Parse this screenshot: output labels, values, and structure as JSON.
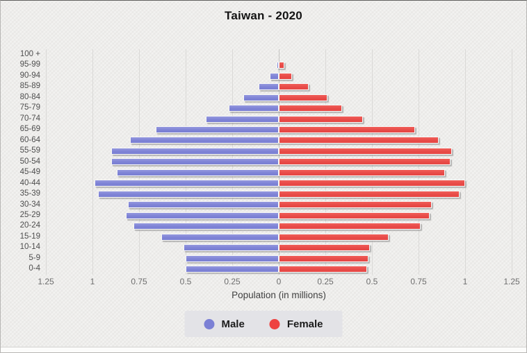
{
  "title": "Taiwan - 2020",
  "xlabel": "Population (in millions)",
  "legend": {
    "items": [
      {
        "name": "male",
        "label": "Male",
        "color": "#7b80d5"
      },
      {
        "name": "female",
        "label": "Female",
        "color": "#ee4341"
      }
    ]
  },
  "colors": {
    "male_bar": "#7e83d6",
    "female_bar": "#e84b48",
    "background": "#edecea",
    "gridline": "#dad9d7"
  },
  "chart_data": {
    "type": "bar",
    "variant": "population-pyramid",
    "title": "Taiwan - 2020",
    "xlabel": "Population (in millions)",
    "categories": [
      "100 +",
      "95-99",
      "90-94",
      "85-89",
      "80-84",
      "75-79",
      "70-74",
      "65-69",
      "60-64",
      "55-59",
      "50-54",
      "45-49",
      "40-44",
      "35-39",
      "30-34",
      "25-29",
      "20-24",
      "15-19",
      "10-14",
      "5-9",
      "0-4"
    ],
    "series": [
      {
        "name": "Male",
        "side": "left",
        "values": [
          0.0,
          0.01,
          0.05,
          0.11,
          0.19,
          0.27,
          0.39,
          0.66,
          0.8,
          0.9,
          0.9,
          0.87,
          0.99,
          0.97,
          0.81,
          0.82,
          0.78,
          0.63,
          0.51,
          0.5,
          0.5
        ]
      },
      {
        "name": "Female",
        "side": "right",
        "values": [
          0.0,
          0.03,
          0.07,
          0.16,
          0.26,
          0.34,
          0.45,
          0.73,
          0.86,
          0.93,
          0.92,
          0.89,
          1.0,
          0.97,
          0.82,
          0.81,
          0.76,
          0.59,
          0.49,
          0.48,
          0.475
        ]
      }
    ],
    "x_ticks": [
      -1.25,
      -1.0,
      -0.75,
      -0.5,
      -0.25,
      0,
      0.25,
      0.5,
      0.75,
      1.0,
      1.25
    ],
    "x_tick_labels": [
      "1.25",
      "1",
      "0.75",
      "0.5",
      "0.25",
      "0",
      "0.25",
      "0.5",
      "0.75",
      "1",
      "1.25"
    ],
    "xlim": [
      -1.25,
      1.25
    ],
    "grid": true,
    "legend_position": "bottom",
    "units": "millions"
  }
}
